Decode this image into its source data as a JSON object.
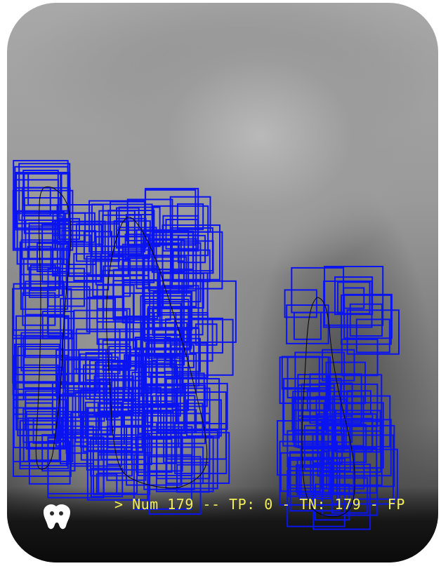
{
  "image": {
    "kind": "dental periapical x-ray with detection boxes"
  },
  "colors": {
    "box_stroke": "#0a14f0",
    "outline_stroke": "#000000",
    "status_text": "#f4f05a",
    "logo_fill": "#ffffff"
  },
  "status": {
    "prefix": ">",
    "num_label": "Num",
    "num_value": 179,
    "tp_label": "TP:",
    "tp_value": 0,
    "tn_label": "TN:",
    "tn_value": 179,
    "text": "> Num 179 -- TP: 0 - TN: 179 - FP"
  },
  "icons": {
    "logo": "tooth-logo-icon"
  }
}
